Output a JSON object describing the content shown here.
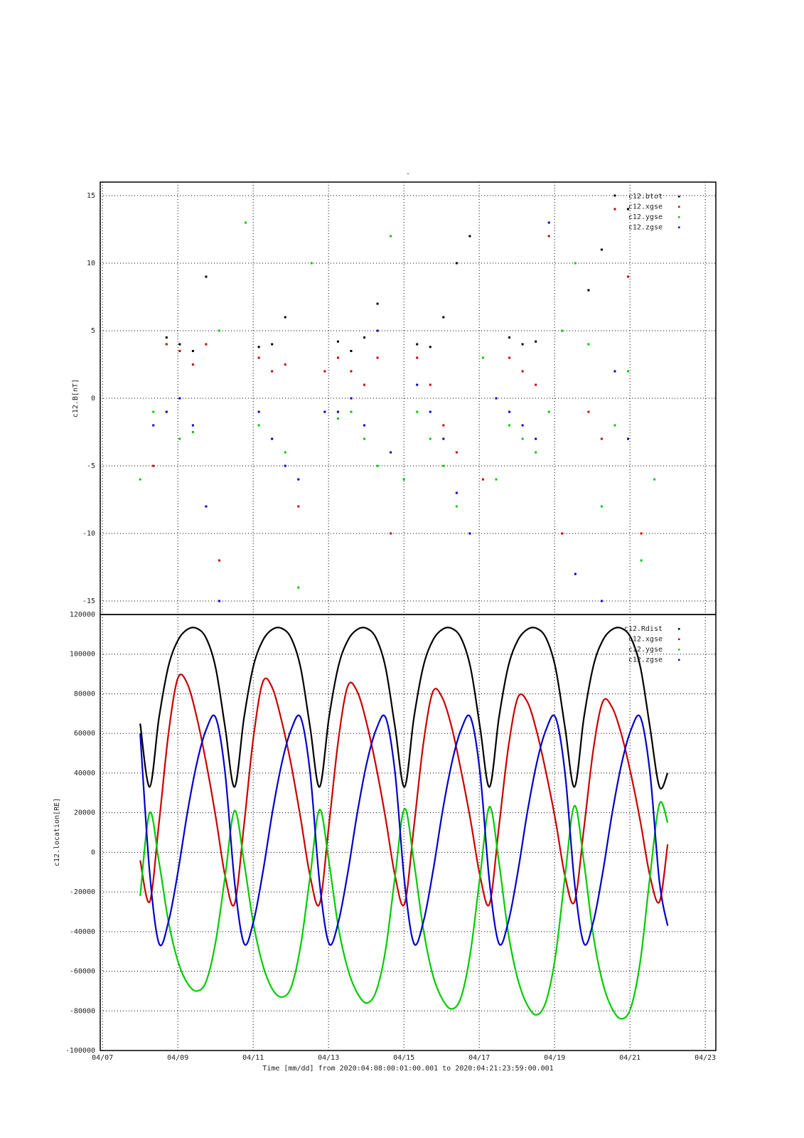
{
  "chart_data": [
    {
      "type": "scatter",
      "title": "-",
      "ylabel": "c12.B[nT]",
      "x": [
        8.0,
        8.35,
        8.7,
        9.05,
        9.4,
        9.75,
        10.1,
        10.45,
        10.8,
        11.15,
        11.5,
        11.85,
        12.2,
        12.55,
        12.9,
        13.25,
        13.6,
        13.95,
        14.3,
        14.65,
        15.0,
        15.35,
        15.7,
        16.05,
        16.4,
        16.75,
        17.1,
        17.45,
        17.8,
        18.15,
        18.5,
        18.85,
        19.2,
        19.55,
        19.9,
        20.25,
        20.6,
        20.95,
        21.3,
        21.65,
        22.0
      ],
      "series": [
        {
          "name": "c12.btot",
          "color": "#000000",
          "values": [
            null,
            null,
            4.5,
            4,
            3.5,
            9,
            null,
            null,
            null,
            3.8,
            4,
            6,
            null,
            null,
            null,
            4.2,
            3.5,
            4.5,
            7,
            null,
            null,
            4,
            3.8,
            6,
            10,
            12,
            null,
            null,
            4.5,
            4,
            4.2,
            null,
            null,
            null,
            8,
            11,
            15,
            14,
            null,
            null,
            null
          ]
        },
        {
          "name": "c12.xgse",
          "color": "#cc0000",
          "values": [
            null,
            -5,
            4,
            3.5,
            2.5,
            4,
            -12,
            null,
            null,
            3,
            2,
            2.5,
            -8,
            null,
            2,
            3,
            2,
            1,
            3,
            -10,
            null,
            3,
            1,
            -2,
            -4,
            null,
            -6,
            null,
            3,
            2,
            1,
            12,
            -10,
            null,
            -1,
            -3,
            14,
            9,
            -10,
            null,
            null
          ]
        },
        {
          "name": "c12.ygse",
          "color": "#00cc00",
          "values": [
            -6,
            -1,
            -1,
            -3,
            -2.5,
            -8,
            5,
            null,
            13,
            -2,
            -3,
            -4,
            -14,
            10,
            -1,
            -1.5,
            -1,
            -3,
            -5,
            12,
            -6,
            -1,
            -3,
            -5,
            -8,
            -10,
            3,
            -6,
            -2,
            -3,
            -4,
            -1,
            5,
            10,
            4,
            -8,
            -2,
            2,
            -12,
            -6,
            null
          ]
        },
        {
          "name": "c12.zgse",
          "color": "#0000cc",
          "values": [
            null,
            -2,
            -1,
            0,
            -2,
            -8,
            -15,
            null,
            null,
            -1,
            -3,
            -5,
            -6,
            null,
            -1,
            -1,
            0,
            -2,
            5,
            -4,
            null,
            1,
            -1,
            -3,
            -7,
            -10,
            null,
            0,
            -1,
            -2,
            -3,
            13,
            null,
            -13,
            null,
            -15,
            2,
            -3,
            null,
            null,
            null
          ]
        }
      ],
      "xlim": [
        6.94,
        23.28
      ],
      "xticks": [
        7,
        9,
        11,
        13,
        15,
        17,
        19,
        21,
        23
      ],
      "ylim": [
        -16,
        16
      ],
      "yticks": [
        -15,
        -10,
        -5,
        0,
        5,
        10,
        15
      ],
      "grid": true,
      "legend": "upper right"
    },
    {
      "type": "line",
      "ylabel": "c12.location[RE]",
      "xlabel": "Time [mm/dd]  from 2020:04:08:00:01:00.001  to  2020:04:21:23:59:00.001",
      "x": [
        8.0,
        8.251,
        8.501,
        8.752,
        9.002,
        9.253,
        9.504,
        9.754,
        10.005,
        10.255,
        10.506,
        10.757,
        11.007,
        11.258,
        11.508,
        11.759,
        12.01,
        12.26,
        12.511,
        12.761,
        13.012,
        13.263,
        13.513,
        13.764,
        14.014,
        14.265,
        14.516,
        14.766,
        15.017,
        15.267,
        15.518,
        15.769,
        16.019,
        16.27,
        16.52,
        16.771,
        17.022,
        17.272,
        17.523,
        17.773,
        18.024,
        18.275,
        18.525,
        18.776,
        19.026,
        19.277,
        19.528,
        19.778,
        20.029,
        20.279,
        20.53,
        20.781,
        21.031,
        21.282,
        21.532,
        21.783,
        22.0
      ],
      "series": [
        {
          "name": "c12.Rdist",
          "color": "#000000",
          "values": [
            65000,
            33000,
            68000,
            94000,
            107000,
            112500,
            113000,
            108000,
            93000,
            63000,
            33000,
            68000,
            94000,
            107000,
            112500,
            113000,
            108000,
            93000,
            63000,
            33000,
            68000,
            94000,
            107000,
            112500,
            113000,
            108000,
            93000,
            63000,
            33000,
            68000,
            94000,
            107000,
            112500,
            113000,
            108000,
            93000,
            63000,
            33000,
            68000,
            94000,
            107000,
            112500,
            113000,
            108000,
            93000,
            63000,
            33000,
            68000,
            94000,
            107000,
            112500,
            113000,
            108000,
            93000,
            63000,
            33000,
            40000
          ]
        },
        {
          "name": "c12.xgse",
          "color": "#cc0000",
          "values": [
            -4000,
            -25000,
            15000,
            60000,
            88000,
            85000,
            68000,
            45000,
            18000,
            -12000,
            -26000,
            14000,
            58000,
            86000,
            83000,
            66000,
            44000,
            17000,
            -12000,
            -26000,
            14000,
            57000,
            84000,
            81000,
            65000,
            43000,
            17000,
            -12000,
            -26000,
            13000,
            55000,
            81000,
            78000,
            63000,
            41000,
            16000,
            -12000,
            -26000,
            13000,
            53000,
            78000,
            76000,
            61000,
            40000,
            16000,
            -12000,
            -25000,
            12000,
            52000,
            76000,
            73000,
            59000,
            39000,
            15000,
            -12000,
            -25000,
            4000
          ]
        },
        {
          "name": "c12.ygse",
          "color": "#00cc00",
          "values": [
            -22000,
            20000,
            -5000,
            -35000,
            -55000,
            -66000,
            -70000,
            -65000,
            -45000,
            -12000,
            21000,
            -5000,
            -36000,
            -57000,
            -69000,
            -73000,
            -68000,
            -47000,
            -12000,
            21500,
            -5000,
            -38000,
            -59000,
            -71000,
            -76000,
            -70000,
            -49000,
            -12000,
            22000,
            -5000,
            -39000,
            -62000,
            -74000,
            -79000,
            -73000,
            -50000,
            -12000,
            23000,
            -5000,
            -41000,
            -64000,
            -77000,
            -82000,
            -75000,
            -52000,
            -12000,
            23500,
            -5000,
            -42000,
            -66000,
            -79000,
            -84000,
            -78000,
            -54000,
            -12000,
            24500,
            15000
          ]
        },
        {
          "name": "c12.zgse",
          "color": "#0000cc",
          "values": [
            60000,
            -10000,
            -46000,
            -35000,
            -10000,
            20000,
            45000,
            62000,
            68000,
            40000,
            -15000,
            -46000,
            -35000,
            -10000,
            20000,
            45000,
            62000,
            68000,
            40000,
            -15000,
            -46000,
            -35000,
            -10000,
            20000,
            45000,
            62000,
            68000,
            40000,
            -15000,
            -46000,
            -35000,
            -10000,
            20000,
            45000,
            62000,
            68000,
            40000,
            -15000,
            -46000,
            -35000,
            -10000,
            20000,
            45000,
            62000,
            68000,
            40000,
            -15000,
            -46000,
            -35000,
            -10000,
            20000,
            45000,
            62000,
            68000,
            40000,
            -15000,
            -37000
          ]
        }
      ],
      "xlim": [
        6.94,
        23.28
      ],
      "xticks": [
        {
          "value": 7,
          "label": "04/07"
        },
        {
          "value": 9,
          "label": "04/09"
        },
        {
          "value": 11,
          "label": "04/11"
        },
        {
          "value": 13,
          "label": "04/13"
        },
        {
          "value": 15,
          "label": "04/15"
        },
        {
          "value": 17,
          "label": "04/17"
        },
        {
          "value": 19,
          "label": "04/19"
        },
        {
          "value": 21,
          "label": "04/21"
        },
        {
          "value": 23,
          "label": "04/23"
        }
      ],
      "ylim": [
        -100000,
        120000
      ],
      "yticks": [
        -100000,
        -80000,
        -60000,
        -40000,
        -20000,
        0,
        20000,
        40000,
        60000,
        80000,
        100000,
        120000
      ],
      "grid": true,
      "legend": "upper right"
    }
  ]
}
